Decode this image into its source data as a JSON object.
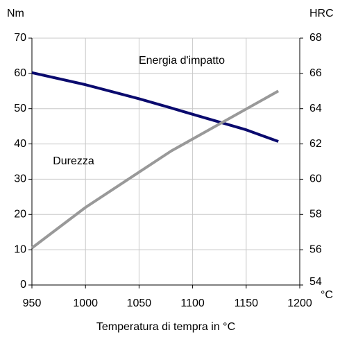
{
  "chart_data": {
    "type": "line",
    "xlabel": "Temperatura di tempra in °C",
    "x_unit": "°C",
    "ylabel": "Nm",
    "y2label": "HRC",
    "xlim": [
      950,
      1200
    ],
    "xticks": [
      950,
      1000,
      1050,
      1100,
      1150,
      1200
    ],
    "ylim": [
      0,
      70
    ],
    "yticks": [
      0,
      10,
      20,
      30,
      40,
      50,
      60,
      70
    ],
    "y2lim": [
      54,
      68
    ],
    "y2ticks": [
      54,
      56,
      58,
      60,
      62,
      64,
      66,
      68
    ],
    "grid": true,
    "series": [
      {
        "name": "Energia d'impatto",
        "color": "#0a0a6e",
        "axis": "y",
        "x": [
          950,
          1000,
          1050,
          1080,
          1100,
          1150,
          1180
        ],
        "values": [
          60.2,
          56.8,
          52.8,
          50.2,
          48.4,
          44.0,
          40.7
        ]
      },
      {
        "name": "Durezza",
        "color": "#999999",
        "axis": "y2",
        "x": [
          950,
          1000,
          1080,
          1180
        ],
        "values": [
          56.1,
          58.4,
          61.6,
          65.0
        ]
      }
    ]
  }
}
